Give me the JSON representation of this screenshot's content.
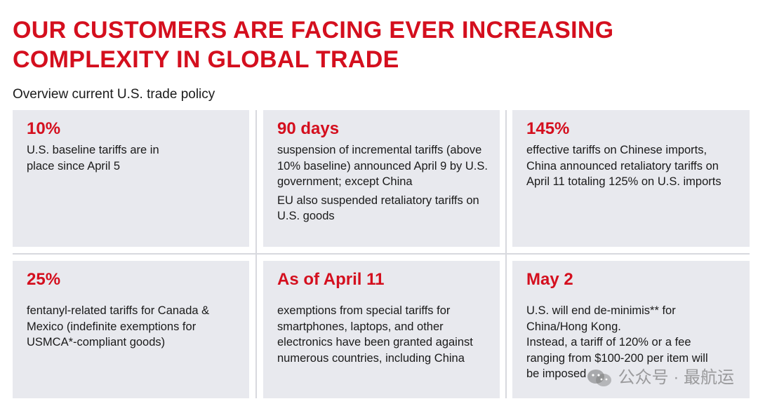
{
  "title": "OUR CUSTOMERS ARE FACING EVER INCREASING COMPLEXITY IN GLOBAL TRADE",
  "subtitle": "Overview current U.S. trade policy",
  "cards": [
    {
      "headline": "10%",
      "paragraphs": [
        "U.S. baseline tariffs are in place since April 5"
      ]
    },
    {
      "headline": "90 days",
      "paragraphs": [
        "suspension of incremental tariffs (above 10% baseline) announced April 9 by U.S. government; except China",
        "EU also suspended retaliatory tariffs on U.S. goods"
      ]
    },
    {
      "headline": "145%",
      "paragraphs": [
        "effective tariffs on Chinese imports, China announced retaliatory tariffs on April 11 totaling 125% on U.S. imports"
      ]
    },
    {
      "headline": "25%",
      "paragraphs": [
        "fentanyl-related tariffs for Canada & Mexico (indefinite exemptions for USMCA*-compliant goods)"
      ]
    },
    {
      "headline": "As of April 11",
      "paragraphs": [
        "exemptions from special tariffs for smartphones, laptops, and other electronics have been granted against numerous countries, including China"
      ]
    },
    {
      "headline": "May 2",
      "paragraphs": [
        "U.S. will end de-minimis** for China/Hong Kong.",
        "Instead, a tariff of 120% or a fee ranging from $100-200 per item will be imposed"
      ]
    }
  ],
  "watermark": {
    "text": "公众号 · 最航运",
    "icon": "wechat-icon"
  },
  "colors": {
    "accent_red": "#d40f1e",
    "card_bg": "#e8e9ee"
  }
}
